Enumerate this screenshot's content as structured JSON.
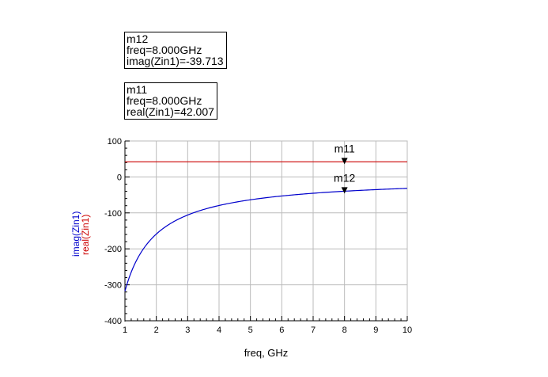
{
  "markers": [
    {
      "name": "m12",
      "freq_line": "freq=8.000GHz",
      "value_line": "imag(Zin1)=-39.713"
    },
    {
      "name": "m11",
      "freq_line": "freq=8.000GHz",
      "value_line": "real(Zin1)=42.007"
    }
  ],
  "colors": {
    "imag": "#0000cc",
    "real": "#cc0000",
    "grid": "#bbbbbb",
    "axis": "#000000"
  },
  "chart_data": {
    "type": "line",
    "xlabel": "freq, GHz",
    "ylabels": [
      "imag(Zin1)",
      "real(Zin1)"
    ],
    "xlim": [
      1,
      10
    ],
    "ylim": [
      -400,
      100
    ],
    "xticks": [
      1,
      2,
      3,
      4,
      5,
      6,
      7,
      8,
      9,
      10
    ],
    "yticks": [
      100,
      0,
      -100,
      -200,
      -300,
      -400
    ],
    "grid": true,
    "series": [
      {
        "name": "real(Zin1)",
        "color": "#cc0000",
        "x": [
          1,
          10
        ],
        "y": [
          42.007,
          42.007
        ]
      },
      {
        "name": "imag(Zin1)",
        "color": "#0000cc",
        "x": [
          1,
          1.25,
          1.5,
          1.75,
          2,
          2.5,
          3,
          3.5,
          4,
          5,
          6,
          7,
          8,
          9,
          10
        ],
        "y": [
          -318,
          -254,
          -212,
          -182,
          -159,
          -127,
          -106,
          -91,
          -80,
          -64,
          -53,
          -45.4,
          -39.713,
          -35.3,
          -31.8
        ]
      }
    ],
    "markers": [
      {
        "label": "m11",
        "series": "real(Zin1)",
        "x": 8,
        "y": 42.007
      },
      {
        "label": "m12",
        "series": "imag(Zin1)",
        "x": 8,
        "y": -39.713
      }
    ]
  }
}
